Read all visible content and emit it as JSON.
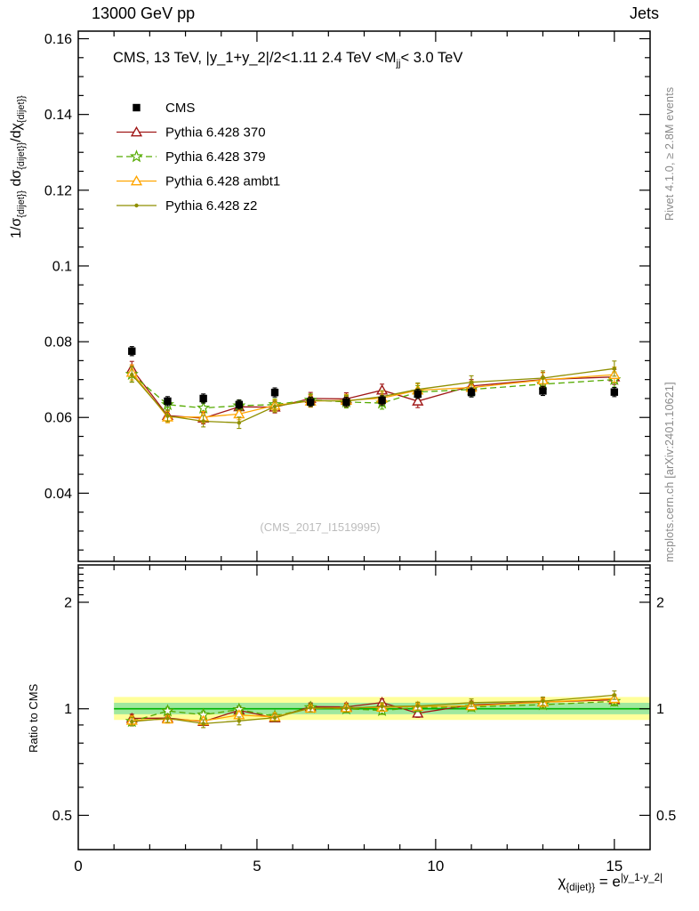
{
  "header": {
    "left": "13000 GeV pp",
    "right": "Jets"
  },
  "annotation": {
    "parts": [
      "CMS, 13 TeV, |y_1+y_2|/2<1.11 2.4 TeV <M",
      "jj",
      "< 3.0 TeV"
    ]
  },
  "watermark": "(CMS_2017_I1519995)",
  "side_notes": {
    "top": "Rivet 4.1.0, ≥ 2.8M events",
    "bottom": "mcplots.cern.ch [arXiv:2401.10621]"
  },
  "axis_labels": {
    "y_main_parts": [
      "1/σ",
      "{dijet}}",
      " dσ",
      "{dijet}}",
      "/dχ",
      "{dijet}}"
    ],
    "y_ratio": "Ratio to CMS",
    "x_parts": [
      "χ",
      "{dijet}}",
      " = e",
      "|y_1-y_2|"
    ]
  },
  "chart_data": {
    "type": "line",
    "title": "CMS, 13 TeV, |y_1+y_2|/2<1.11 2.4 TeV <Mjj< 3.0 TeV",
    "x": [
      1.5,
      2.5,
      3.5,
      4.5,
      5.5,
      6.5,
      7.5,
      8.5,
      9.5,
      11,
      13,
      15
    ],
    "series": [
      {
        "name": "CMS",
        "color": "#000000",
        "marker": "square",
        "line": "none",
        "y": [
          0.0775,
          0.0643,
          0.065,
          0.0634,
          0.0666,
          0.0641,
          0.0641,
          0.0645,
          0.0662,
          0.0666,
          0.067,
          0.0667
        ],
        "yerr": [
          0.0012,
          0.0012,
          0.0012,
          0.0012,
          0.0012,
          0.0012,
          0.0012,
          0.0012,
          0.0012,
          0.0012,
          0.0012,
          0.0012
        ]
      },
      {
        "name": "Pythia 6.428 370",
        "color": "#a01818",
        "marker": "triangle",
        "line": "solid",
        "y": [
          0.0728,
          0.0605,
          0.0598,
          0.0628,
          0.0627,
          0.065,
          0.0649,
          0.0672,
          0.0643,
          0.0683,
          0.07,
          0.0707
        ],
        "yerr": [
          0.002,
          0.0015,
          0.0015,
          0.0015,
          0.0015,
          0.0016,
          0.0016,
          0.0016,
          0.0017,
          0.0017,
          0.0019,
          0.002
        ]
      },
      {
        "name": "Pythia 6.428 379",
        "color": "#55aa00",
        "marker": "star",
        "line": "dashed",
        "dash": "7,4",
        "y": [
          0.0714,
          0.0634,
          0.0625,
          0.0631,
          0.0634,
          0.0646,
          0.0641,
          0.0638,
          0.0667,
          0.0674,
          0.0688,
          0.07
        ],
        "yerr": [
          0.002,
          0.0015,
          0.0015,
          0.0015,
          0.0015,
          0.0016,
          0.0016,
          0.0016,
          0.0017,
          0.0017,
          0.0019,
          0.002
        ]
      },
      {
        "name": "Pythia 6.428 ambt1",
        "color": "#ffa500",
        "marker": "triangle",
        "line": "solid",
        "y": [
          0.0719,
          0.0601,
          0.0601,
          0.0609,
          0.0632,
          0.0643,
          0.0645,
          0.0651,
          0.0672,
          0.0679,
          0.0699,
          0.0713
        ],
        "yerr": [
          0.002,
          0.0015,
          0.0015,
          0.0015,
          0.0015,
          0.0016,
          0.0016,
          0.0016,
          0.0017,
          0.0017,
          0.0019,
          0.002
        ]
      },
      {
        "name": "Pythia 6.428 z2",
        "color": "#8f8f00",
        "marker": "dot",
        "line": "solid",
        "y": [
          0.0713,
          0.0604,
          0.059,
          0.0586,
          0.0629,
          0.0645,
          0.0643,
          0.0655,
          0.0674,
          0.0693,
          0.0704,
          0.0729
        ],
        "yerr": [
          0.002,
          0.0015,
          0.0015,
          0.0015,
          0.0015,
          0.0016,
          0.0016,
          0.0016,
          0.0017,
          0.0017,
          0.0019,
          0.002
        ]
      }
    ],
    "main_axis": {
      "xlim": [
        0,
        16
      ],
      "xticks": [
        0,
        5,
        10,
        15
      ],
      "xtick_labels": [
        "0",
        "5",
        "10",
        "15"
      ],
      "x_minor_step": 1,
      "ylim": [
        0.022,
        0.162
      ],
      "yticks": [
        0.04,
        0.06,
        0.08,
        0.1,
        0.12,
        0.14,
        0.16
      ],
      "ytick_labels": [
        "0.04",
        "0.06",
        "0.08",
        "0.1",
        "0.12",
        "0.14",
        "0.16"
      ]
    },
    "ratio_axis": {
      "scale": "log",
      "ylim": [
        0.4,
        2.55
      ],
      "yticks": [
        0.5,
        1,
        2
      ],
      "ytick_labels": [
        "0.5",
        "1",
        "2"
      ],
      "yminors": [
        0.6,
        0.7,
        0.8,
        0.9,
        2.1,
        2.2,
        2.3,
        2.4,
        2.5
      ]
    },
    "ratio_band": {
      "x": [
        1,
        16
      ],
      "yellow": [
        0.93,
        1.08
      ],
      "green": [
        0.965,
        1.04
      ],
      "line": 1,
      "colors": {
        "yellow": "#ffff9a",
        "green": "#9fe89f",
        "line": "#00b400"
      }
    }
  }
}
